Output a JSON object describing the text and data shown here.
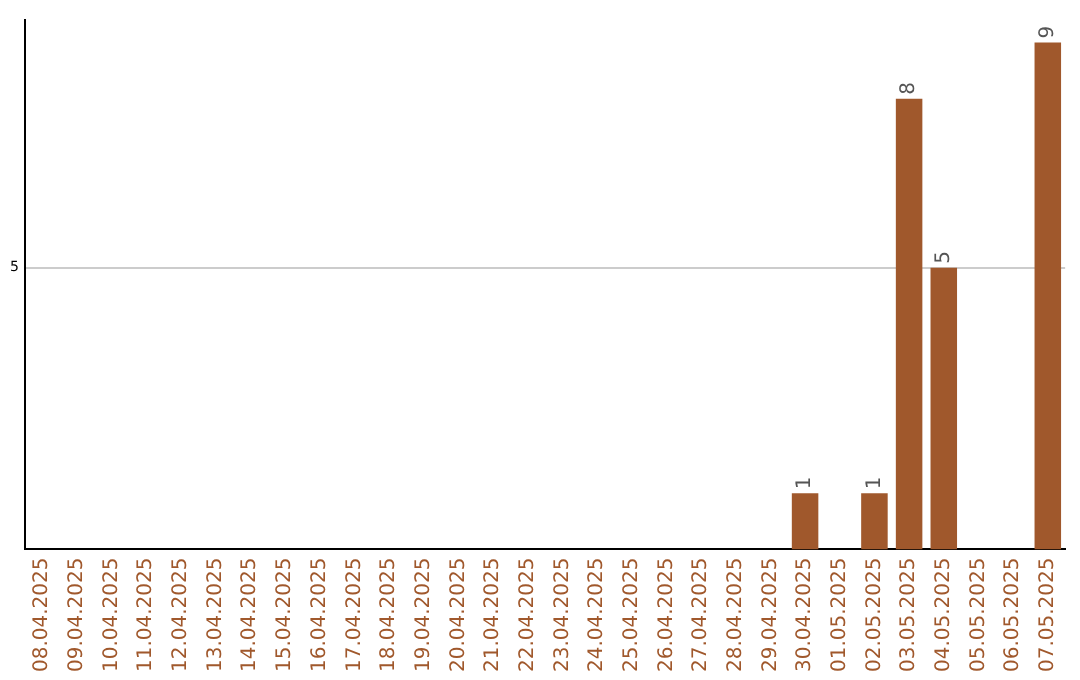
{
  "chart_data": {
    "type": "bar",
    "categories": [
      "08.04.2025",
      "09.04.2025",
      "10.04.2025",
      "11.04.2025",
      "12.04.2025",
      "13.04.2025",
      "14.04.2025",
      "15.04.2025",
      "16.04.2025",
      "17.04.2025",
      "18.04.2025",
      "19.04.2025",
      "20.04.2025",
      "21.04.2025",
      "22.04.2025",
      "23.04.2025",
      "24.04.2025",
      "25.04.2025",
      "26.04.2025",
      "27.04.2025",
      "28.04.2025",
      "29.04.2025",
      "30.04.2025",
      "01.05.2025",
      "02.05.2025",
      "03.05.2025",
      "04.05.2025",
      "05.05.2025",
      "06.05.2025",
      "07.05.2025"
    ],
    "values": [
      null,
      null,
      null,
      null,
      null,
      null,
      null,
      null,
      null,
      null,
      null,
      null,
      null,
      null,
      null,
      null,
      null,
      null,
      null,
      null,
      null,
      null,
      1,
      null,
      1,
      8,
      5,
      null,
      null,
      9
    ],
    "data_labels": true,
    "color": "#a0582c",
    "ylim": [
      0,
      9.4
    ],
    "yticks": [
      5
    ],
    "grid": "y",
    "legend": false
  }
}
